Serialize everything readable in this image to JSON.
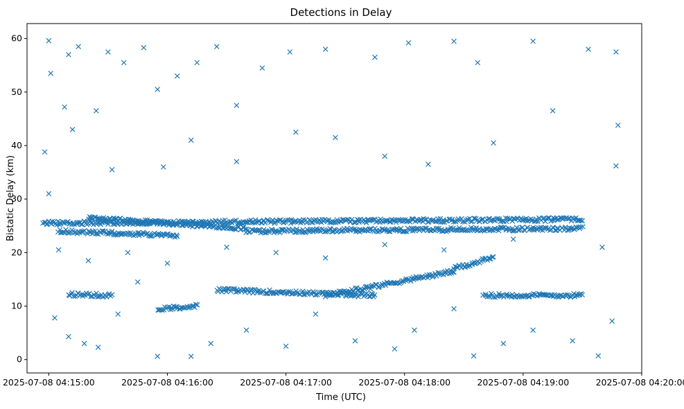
{
  "chart_data": {
    "type": "scatter",
    "title": "Detections in Delay",
    "xlabel": "Time (UTC)",
    "ylabel": "Bistatic Delay (km)",
    "marker": "x",
    "color": "#1f77b4",
    "grid": false,
    "x_axis_type": "time",
    "xlim": [
      "2025-07-08 04:14:49",
      "2025-07-08 04:20:00"
    ],
    "ylim": [
      -2.5,
      62.8
    ],
    "x_ticks": [
      "2025-07-08 04:15:00",
      "2025-07-08 04:16:00",
      "2025-07-08 04:17:00",
      "2025-07-08 04:18:00",
      "2025-07-08 04:19:00",
      "2025-07-08 04:20:00"
    ],
    "y_ticks": [
      0,
      10,
      20,
      30,
      40,
      50,
      60
    ],
    "bands": [
      {
        "start": "2025-07-08 04:14:57",
        "end": "2025-07-08 04:19:30",
        "y_start": 25.5,
        "y_end": 26.2
      },
      {
        "start": "2025-07-08 04:15:05",
        "end": "2025-07-08 04:16:05",
        "y_start": 24.0,
        "y_end": 23.2
      },
      {
        "start": "2025-07-08 04:15:20",
        "end": "2025-07-08 04:16:40",
        "y_start": 26.5,
        "y_end": 24.5
      },
      {
        "start": "2025-07-08 04:16:40",
        "end": "2025-07-08 04:19:30",
        "y_start": 24.0,
        "y_end": 24.5
      },
      {
        "start": "2025-07-08 04:15:10",
        "end": "2025-07-08 04:15:32",
        "y_start": 12.2,
        "y_end": 12.0
      },
      {
        "start": "2025-07-08 04:16:25",
        "end": "2025-07-08 04:17:45",
        "y_start": 13.0,
        "y_end": 12.0
      },
      {
        "start": "2025-07-08 04:17:20",
        "end": "2025-07-08 04:18:25",
        "y_start": 12.0,
        "y_end": 16.5
      },
      {
        "start": "2025-07-08 04:18:25",
        "end": "2025-07-08 04:18:45",
        "y_start": 17.0,
        "y_end": 19.0
      },
      {
        "start": "2025-07-08 04:18:40",
        "end": "2025-07-08 04:19:30",
        "y_start": 12.0,
        "y_end": 12.0
      },
      {
        "start": "2025-07-08 04:15:55",
        "end": "2025-07-08 04:16:15",
        "y_start": 9.5,
        "y_end": 10.0
      }
    ],
    "points": [
      {
        "x": "2025-07-08 04:15:00",
        "y": 59.6
      },
      {
        "x": "2025-07-08 04:15:01",
        "y": 53.5
      },
      {
        "x": "2025-07-08 04:15:08",
        "y": 47.2
      },
      {
        "x": "2025-07-08 04:15:10",
        "y": 57.0
      },
      {
        "x": "2025-07-08 04:15:15",
        "y": 58.5
      },
      {
        "x": "2025-07-08 04:15:24",
        "y": 46.5
      },
      {
        "x": "2025-07-08 04:15:30",
        "y": 57.5
      },
      {
        "x": "2025-07-08 04:15:38",
        "y": 55.5
      },
      {
        "x": "2025-07-08 04:15:48",
        "y": 58.3
      },
      {
        "x": "2025-07-08 04:15:55",
        "y": 50.5
      },
      {
        "x": "2025-07-08 04:16:05",
        "y": 53.0
      },
      {
        "x": "2025-07-08 04:16:15",
        "y": 55.5
      },
      {
        "x": "2025-07-08 04:16:25",
        "y": 58.5
      },
      {
        "x": "2025-07-08 04:16:35",
        "y": 47.5
      },
      {
        "x": "2025-07-08 04:16:48",
        "y": 54.5
      },
      {
        "x": "2025-07-08 04:17:02",
        "y": 57.5
      },
      {
        "x": "2025-07-08 04:17:20",
        "y": 58.0
      },
      {
        "x": "2025-07-08 04:17:45",
        "y": 56.5
      },
      {
        "x": "2025-07-08 04:18:02",
        "y": 59.2
      },
      {
        "x": "2025-07-08 04:18:25",
        "y": 59.5
      },
      {
        "x": "2025-07-08 04:18:37",
        "y": 55.5
      },
      {
        "x": "2025-07-08 04:19:05",
        "y": 59.5
      },
      {
        "x": "2025-07-08 04:19:33",
        "y": 58.0
      },
      {
        "x": "2025-07-08 04:19:47",
        "y": 57.5
      },
      {
        "x": "2025-07-08 04:14:58",
        "y": 38.8
      },
      {
        "x": "2025-07-08 04:15:12",
        "y": 43.0
      },
      {
        "x": "2025-07-08 04:15:32",
        "y": 35.5
      },
      {
        "x": "2025-07-08 04:15:58",
        "y": 36.0
      },
      {
        "x": "2025-07-08 04:16:12",
        "y": 41.0
      },
      {
        "x": "2025-07-08 04:16:35",
        "y": 37.0
      },
      {
        "x": "2025-07-08 04:17:05",
        "y": 42.5
      },
      {
        "x": "2025-07-08 04:17:25",
        "y": 41.5
      },
      {
        "x": "2025-07-08 04:17:50",
        "y": 38.0
      },
      {
        "x": "2025-07-08 04:18:12",
        "y": 36.5
      },
      {
        "x": "2025-07-08 04:18:45",
        "y": 40.5
      },
      {
        "x": "2025-07-08 04:19:15",
        "y": 46.5
      },
      {
        "x": "2025-07-08 04:19:48",
        "y": 43.8
      },
      {
        "x": "2025-07-08 04:19:47",
        "y": 36.2
      },
      {
        "x": "2025-07-08 04:15:00",
        "y": 31.0
      },
      {
        "x": "2025-07-08 04:15:05",
        "y": 20.5
      },
      {
        "x": "2025-07-08 04:15:20",
        "y": 18.5
      },
      {
        "x": "2025-07-08 04:15:40",
        "y": 20.0
      },
      {
        "x": "2025-07-08 04:16:00",
        "y": 18.0
      },
      {
        "x": "2025-07-08 04:16:30",
        "y": 21.0
      },
      {
        "x": "2025-07-08 04:16:55",
        "y": 20.0
      },
      {
        "x": "2025-07-08 04:17:20",
        "y": 19.0
      },
      {
        "x": "2025-07-08 04:17:50",
        "y": 21.5
      },
      {
        "x": "2025-07-08 04:18:20",
        "y": 20.5
      },
      {
        "x": "2025-07-08 04:18:55",
        "y": 22.5
      },
      {
        "x": "2025-07-08 04:19:40",
        "y": 21.0
      },
      {
        "x": "2025-07-08 04:15:03",
        "y": 7.8
      },
      {
        "x": "2025-07-08 04:15:10",
        "y": 4.3
      },
      {
        "x": "2025-07-08 04:15:18",
        "y": 3.0
      },
      {
        "x": "2025-07-08 04:15:25",
        "y": 2.3
      },
      {
        "x": "2025-07-08 04:15:35",
        "y": 8.5
      },
      {
        "x": "2025-07-08 04:15:45",
        "y": 14.5
      },
      {
        "x": "2025-07-08 04:15:55",
        "y": 0.6
      },
      {
        "x": "2025-07-08 04:16:12",
        "y": 0.6
      },
      {
        "x": "2025-07-08 04:16:22",
        "y": 3.0
      },
      {
        "x": "2025-07-08 04:16:40",
        "y": 5.5
      },
      {
        "x": "2025-07-08 04:17:00",
        "y": 2.5
      },
      {
        "x": "2025-07-08 04:17:15",
        "y": 8.5
      },
      {
        "x": "2025-07-08 04:17:35",
        "y": 3.5
      },
      {
        "x": "2025-07-08 04:17:55",
        "y": 2.0
      },
      {
        "x": "2025-07-08 04:18:05",
        "y": 5.5
      },
      {
        "x": "2025-07-08 04:18:25",
        "y": 9.5
      },
      {
        "x": "2025-07-08 04:18:35",
        "y": 0.7
      },
      {
        "x": "2025-07-08 04:18:50",
        "y": 3.0
      },
      {
        "x": "2025-07-08 04:19:05",
        "y": 5.5
      },
      {
        "x": "2025-07-08 04:19:25",
        "y": 3.5
      },
      {
        "x": "2025-07-08 04:19:38",
        "y": 0.7
      },
      {
        "x": "2025-07-08 04:19:45",
        "y": 7.2
      }
    ]
  }
}
